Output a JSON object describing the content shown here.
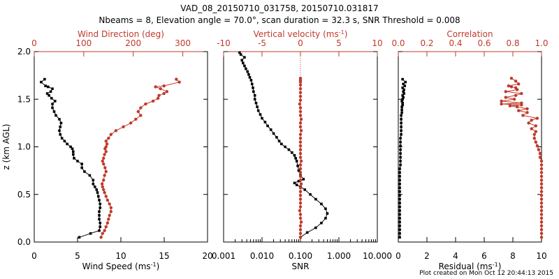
{
  "title": {
    "line1": "VAD_08_20150710_031758, 20150710.031817",
    "line2": "Nbeams = 8, Elevation angle = 70.0°, scan duration = 32.3 s, SNR Threshold = 0.008"
  },
  "footer": "Plot created on Mon Oct 12 20:44:13 2015",
  "colors": {
    "primary": "#000000",
    "secondary": "#c0392b"
  },
  "chart_data": [
    {
      "type": "line",
      "panel": "left",
      "ylabel": "z (km AGL)",
      "ylim": [
        0,
        2.0
      ],
      "yticks": [
        "0.0",
        "0.5",
        "1.0",
        "1.5",
        "2.0"
      ],
      "bottom_axis": {
        "label": "Wind Speed (ms⁻¹)",
        "lim": [
          0,
          20
        ],
        "ticks": [
          "0",
          "5",
          "10",
          "15",
          "20"
        ]
      },
      "top_axis": {
        "label": "Wind Direction (deg)",
        "lim": [
          0,
          350
        ],
        "ticks": [
          "0",
          "100",
          "200",
          "300"
        ]
      },
      "series": [
        {
          "axis": "bottom",
          "color": "#000000",
          "x": [
            5.2,
            6.5,
            7.5,
            7.6,
            7.6,
            7.5,
            7.5,
            7.5,
            7.6,
            7.6,
            7.5,
            7.4,
            7.3,
            7.2,
            7.0,
            6.8,
            6.8,
            6.4,
            5.8,
            5.5,
            5.5,
            5.0,
            4.6,
            4.5,
            4.5,
            4.4,
            4.2,
            3.8,
            3.5,
            3.2,
            3.0,
            2.9,
            3.0,
            3.1,
            2.9,
            2.5,
            2.3,
            2.1,
            2.1,
            2.4,
            2.0,
            1.7,
            1.5,
            1.9,
            2.1,
            1.6,
            1.3,
            0.8,
            1.2
          ],
          "y": [
            0.05,
            0.09,
            0.12,
            0.16,
            0.2,
            0.24,
            0.28,
            0.32,
            0.36,
            0.4,
            0.44,
            0.48,
            0.52,
            0.55,
            0.58,
            0.61,
            0.65,
            0.7,
            0.74,
            0.78,
            0.82,
            0.85,
            0.88,
            0.92,
            0.95,
            0.98,
            1.0,
            1.03,
            1.06,
            1.09,
            1.13,
            1.17,
            1.21,
            1.25,
            1.29,
            1.33,
            1.37,
            1.41,
            1.45,
            1.48,
            1.51,
            1.54,
            1.56,
            1.58,
            1.61,
            1.63,
            1.64,
            1.68,
            1.71
          ]
        },
        {
          "axis": "top",
          "color": "#c0392b",
          "x": [
            135,
            138,
            142,
            145,
            148,
            150,
            152,
            155,
            155,
            152,
            148,
            145,
            142,
            140,
            138,
            137,
            140,
            142,
            145,
            143,
            140,
            138,
            140,
            142,
            145,
            143,
            145,
            147,
            145,
            150,
            155,
            165,
            180,
            195,
            205,
            215,
            210,
            215,
            225,
            240,
            250,
            252,
            262,
            268,
            255,
            245,
            262,
            293,
            287
          ],
          "y": [
            0.05,
            0.09,
            0.12,
            0.16,
            0.2,
            0.24,
            0.28,
            0.32,
            0.36,
            0.4,
            0.44,
            0.48,
            0.52,
            0.55,
            0.58,
            0.61,
            0.65,
            0.7,
            0.74,
            0.78,
            0.82,
            0.85,
            0.88,
            0.92,
            0.95,
            0.98,
            1.0,
            1.03,
            1.06,
            1.09,
            1.13,
            1.17,
            1.21,
            1.25,
            1.29,
            1.33,
            1.37,
            1.41,
            1.45,
            1.48,
            1.51,
            1.54,
            1.56,
            1.58,
            1.61,
            1.63,
            1.64,
            1.68,
            1.71
          ]
        }
      ]
    },
    {
      "type": "line",
      "panel": "middle",
      "ylim": [
        0,
        2.0
      ],
      "bottom_axis": {
        "label": "SNR",
        "scale": "log",
        "lim": [
          0.001,
          10
        ],
        "ticks": [
          "0.001",
          "0.010",
          "0.100",
          "1.000",
          "10.000"
        ]
      },
      "top_axis": {
        "label": "Vertical velocity (ms⁻¹)",
        "lim": [
          -10,
          10
        ],
        "ticks": [
          "-10",
          "-5",
          "0",
          "5",
          "10"
        ]
      },
      "series": [
        {
          "axis": "bottom",
          "color": "#000000",
          "x": [
            0.1,
            0.15,
            0.25,
            0.35,
            0.45,
            0.5,
            0.45,
            0.35,
            0.25,
            0.18,
            0.13,
            0.1,
            0.08,
            0.07,
            0.09,
            0.12,
            0.1,
            0.09,
            0.085,
            0.08,
            0.075,
            0.07,
            0.06,
            0.05,
            0.04,
            0.032,
            0.028,
            0.024,
            0.02,
            0.017,
            0.014,
            0.012,
            0.01,
            0.009,
            0.008,
            0.0075,
            0.007,
            0.0065,
            0.0065,
            0.006,
            0.0058,
            0.0055,
            0.0052,
            0.0048,
            0.0045,
            0.0042,
            0.0038,
            0.0035,
            0.0032,
            0.003,
            0.0035,
            0.0028,
            0.0026
          ],
          "y": [
            0.05,
            0.1,
            0.15,
            0.2,
            0.25,
            0.3,
            0.35,
            0.4,
            0.45,
            0.5,
            0.55,
            0.58,
            0.6,
            0.62,
            0.64,
            0.66,
            0.7,
            0.75,
            0.8,
            0.85,
            0.88,
            0.91,
            0.94,
            0.97,
            1.0,
            1.03,
            1.06,
            1.1,
            1.14,
            1.18,
            1.22,
            1.26,
            1.3,
            1.34,
            1.38,
            1.42,
            1.46,
            1.5,
            1.54,
            1.58,
            1.62,
            1.66,
            1.7,
            1.73,
            1.76,
            1.79,
            1.82,
            1.85,
            1.88,
            1.91,
            1.94,
            1.97,
            1.99
          ]
        },
        {
          "axis": "top",
          "color": "#c0392b",
          "x": [
            0,
            0,
            0,
            0,
            0.1,
            0,
            0,
            -0.1,
            0,
            0,
            0,
            0,
            0,
            0,
            0.1,
            0,
            0,
            0,
            0,
            0,
            0.1,
            0,
            0,
            0,
            0,
            0,
            0,
            0,
            0.1,
            0,
            0,
            0.1,
            0,
            0,
            0,
            -0.1,
            0,
            0,
            0,
            0,
            0,
            0,
            0,
            0
          ],
          "y": [
            0.05,
            0.09,
            0.13,
            0.17,
            0.21,
            0.25,
            0.29,
            0.33,
            0.37,
            0.41,
            0.45,
            0.49,
            0.53,
            0.57,
            0.61,
            0.65,
            0.69,
            0.73,
            0.77,
            0.81,
            0.85,
            0.89,
            0.93,
            0.97,
            1.01,
            1.05,
            1.09,
            1.13,
            1.17,
            1.21,
            1.25,
            1.29,
            1.33,
            1.37,
            1.41,
            1.45,
            1.49,
            1.53,
            1.57,
            1.61,
            1.65,
            1.68,
            1.7,
            1.72
          ]
        }
      ]
    },
    {
      "type": "line",
      "panel": "right",
      "ylim": [
        0,
        2.0
      ],
      "bottom_axis": {
        "label": "Residual (ms⁻¹)",
        "lim": [
          0,
          10
        ],
        "ticks": [
          "0",
          "2",
          "4",
          "6",
          "8",
          "10"
        ]
      },
      "top_axis": {
        "label": "Correlation",
        "lim": [
          0,
          1.0
        ],
        "ticks": [
          "0.0",
          "0.2",
          "0.4",
          "0.6",
          "0.8",
          "1.0"
        ]
      },
      "series": [
        {
          "axis": "bottom",
          "color": "#000000",
          "x": [
            0.1,
            0.1,
            0.1,
            0.1,
            0.1,
            0.1,
            0.1,
            0.1,
            0.1,
            0.1,
            0.1,
            0.1,
            0.1,
            0.1,
            0.1,
            0.1,
            0.1,
            0.1,
            0.1,
            0.15,
            0.15,
            0.15,
            0.15,
            0.15,
            0.15,
            0.15,
            0.15,
            0.2,
            0.2,
            0.2,
            0.2,
            0.2,
            0.2,
            0.25,
            0.25,
            0.25,
            0.3,
            0.3,
            0.25,
            0.3,
            0.35,
            0.3,
            0.4,
            0.35,
            0.4,
            0.3,
            0.45,
            0.35,
            0.5,
            0.3
          ],
          "y": [
            0.05,
            0.09,
            0.13,
            0.17,
            0.21,
            0.25,
            0.29,
            0.33,
            0.37,
            0.41,
            0.45,
            0.49,
            0.53,
            0.57,
            0.61,
            0.65,
            0.69,
            0.73,
            0.77,
            0.81,
            0.85,
            0.89,
            0.93,
            0.97,
            1.01,
            1.05,
            1.09,
            1.13,
            1.17,
            1.21,
            1.25,
            1.29,
            1.33,
            1.36,
            1.39,
            1.42,
            1.44,
            1.46,
            1.48,
            1.5,
            1.52,
            1.54,
            1.56,
            1.58,
            1.6,
            1.62,
            1.64,
            1.66,
            1.68,
            1.71
          ]
        },
        {
          "axis": "top",
          "color": "#c0392b",
          "x": [
            1.0,
            1.0,
            1.0,
            1.0,
            1.0,
            1.0,
            1.0,
            1.0,
            1.0,
            1.0,
            1.0,
            1.0,
            1.0,
            1.0,
            1.0,
            1.0,
            1.0,
            1.0,
            1.0,
            1.0,
            1.0,
            0.99,
            0.99,
            0.98,
            0.97,
            0.96,
            0.95,
            0.95,
            0.96,
            0.93,
            0.96,
            0.91,
            0.93,
            0.97,
            0.87,
            0.9,
            0.84,
            0.9,
            0.83,
            0.78,
            0.86,
            0.72,
            0.86,
            0.72,
            0.81,
            0.75,
            0.82,
            0.86,
            0.75,
            0.83,
            0.82,
            0.79,
            0.77,
            0.84,
            0.82,
            0.79
          ],
          "y": [
            0.05,
            0.09,
            0.13,
            0.17,
            0.21,
            0.25,
            0.29,
            0.33,
            0.37,
            0.41,
            0.45,
            0.49,
            0.53,
            0.57,
            0.61,
            0.65,
            0.69,
            0.73,
            0.77,
            0.81,
            0.85,
            0.89,
            0.93,
            0.97,
            1.01,
            1.05,
            1.09,
            1.13,
            1.16,
            1.19,
            1.22,
            1.25,
            1.28,
            1.3,
            1.33,
            1.36,
            1.38,
            1.4,
            1.42,
            1.43,
            1.44,
            1.45,
            1.46,
            1.48,
            1.5,
            1.52,
            1.54,
            1.56,
            1.58,
            1.6,
            1.62,
            1.63,
            1.64,
            1.66,
            1.69,
            1.72
          ]
        }
      ]
    }
  ]
}
